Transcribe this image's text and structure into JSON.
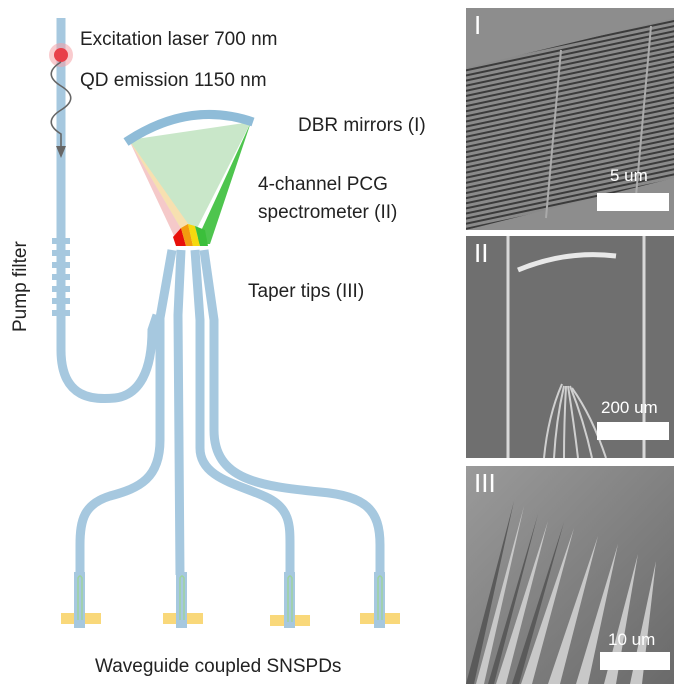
{
  "labels": {
    "excitation": "Excitation laser 700 nm",
    "qd_emission": "QD emission 1150 nm",
    "dbr": "DBR mirrors (I)",
    "pcg_line1": "4-channel PCG",
    "pcg_line2": "spectrometer (II)",
    "taper": "Taper tips (III)",
    "pump_filter": "Pump filter",
    "snspd": "Waveguide coupled SNSPDs"
  },
  "panels": [
    {
      "tag": "I",
      "scale": "5 um"
    },
    {
      "tag": "II",
      "scale": "200 um"
    },
    {
      "tag": "III",
      "scale": "10 um"
    }
  ],
  "colors": {
    "waveguide": "#a6c8df",
    "pcg_fill": "#bfe3bf",
    "channel_red": "#e8100a",
    "channel_orange": "#f39b0f",
    "channel_yellow": "#f6d90f",
    "channel_green": "#3bbf3b",
    "laser": "#e8404a",
    "snspd_pad": "#f9d87a",
    "sem_background": "#7a7a7a"
  }
}
